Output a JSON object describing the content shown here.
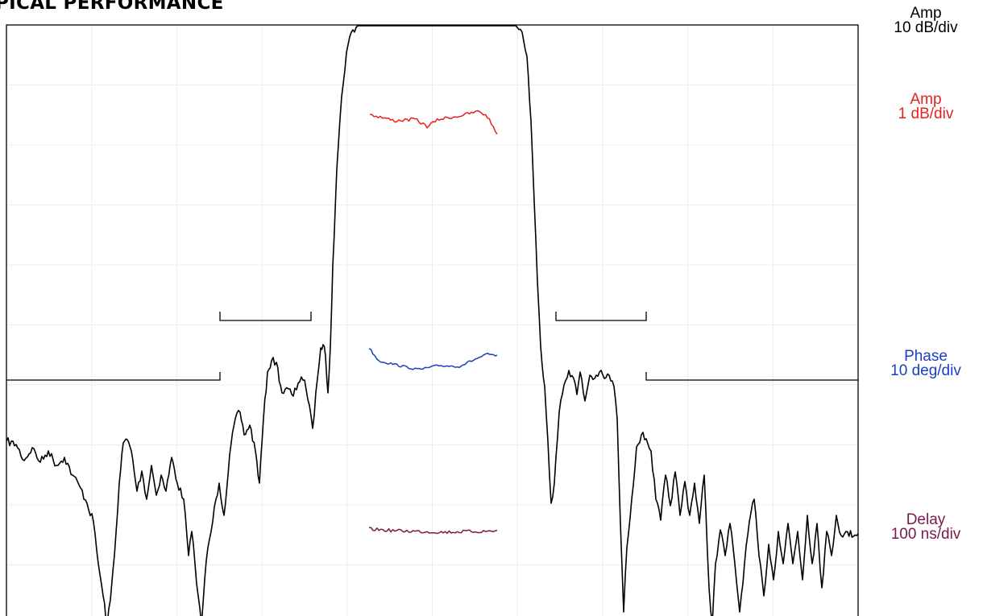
{
  "title": "PICAL PERFORMANCE",
  "chart_data": {
    "type": "line",
    "title": "PICAL PERFORMANCE",
    "grid": true,
    "x_divisions": 10,
    "y_divisions": 10,
    "series": [
      {
        "name": "Amp",
        "scale": "10 dB/div",
        "color": "#000000",
        "trace": "bandpass amplitude response: flat top at full scale across center divisions ~5.3-7.9, steep skirts, stopband ripple down to ~-60 dB"
      },
      {
        "name": "Amp",
        "scale": "1 dB/div",
        "color": "#e8201e",
        "trace": "passband amplitude ripple across center"
      },
      {
        "name": "Phase",
        "scale": "10 deg/div",
        "color": "#1a3fc1",
        "trace": "passband phase deviation, shallow bowl shape"
      },
      {
        "name": "Delay",
        "scale": "100 ns/div",
        "color": "#7a1a4a",
        "trace": "passband group delay, nearly flat"
      }
    ],
    "mask": {
      "description": "stopband rejection mask lines with notches on both sides of the passband"
    }
  },
  "labels": [
    {
      "name": "Amp",
      "scale": "10 dB/div",
      "color": "#000000"
    },
    {
      "name": "Amp",
      "scale": "1 dB/div",
      "color": "#e8201e"
    },
    {
      "name": "Phase",
      "scale": "10 deg/div",
      "color": "#1a3fc1"
    },
    {
      "name": "Delay",
      "scale": "100 ns/div",
      "color": "#7a1a4a"
    }
  ]
}
